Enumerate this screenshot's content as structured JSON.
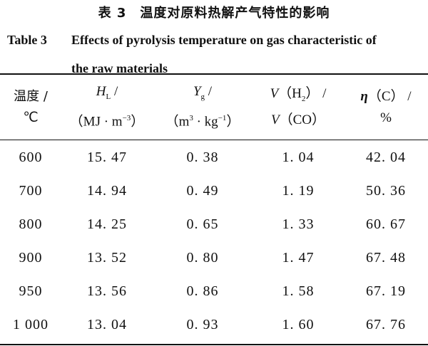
{
  "caption": {
    "title_cn": "表 3　温度对原料热解产气特性的影响",
    "label_en": "Table 3",
    "title_en_line1": "Effects of pyrolysis temperature on gas characteristic of",
    "title_en_line2": "the raw materials"
  },
  "table": {
    "headers": {
      "temp_line1": "温度 /",
      "temp_line2": "℃",
      "hl_symbol": "H",
      "hl_sub": "L",
      "hl_slash": " /",
      "hl_unit_a": "（MJ · m",
      "hl_unit_sup": "−3",
      "hl_unit_b": "）",
      "yg_symbol": "Y",
      "yg_sub": "g",
      "yg_slash": " /",
      "yg_unit_a": "（m",
      "yg_unit_sup1": "3",
      "yg_unit_mid": " · kg",
      "yg_unit_sup2": "−1",
      "yg_unit_b": "）",
      "v_sym1": "V",
      "v_h2_a": "（H",
      "v_h2_sub": "2",
      "v_h2_b": "） /",
      "v_sym2": "V",
      "v_co": "（CO）",
      "eta_sym": "η",
      "eta_rest": "（C） /",
      "eta_unit": "%"
    },
    "rows": [
      [
        "600",
        "15. 47",
        "0. 38",
        "1. 04",
        "42. 04"
      ],
      [
        "700",
        "14. 94",
        "0. 49",
        "1. 19",
        "50. 36"
      ],
      [
        "800",
        "14. 25",
        "0. 65",
        "1. 33",
        "60. 67"
      ],
      [
        "900",
        "13. 52",
        "0. 80",
        "1. 47",
        "67. 48"
      ],
      [
        "950",
        "13. 56",
        "0. 86",
        "1. 58",
        "67. 19"
      ],
      [
        "1 000",
        "13. 04",
        "0. 93",
        "1. 60",
        "67. 76"
      ]
    ]
  }
}
